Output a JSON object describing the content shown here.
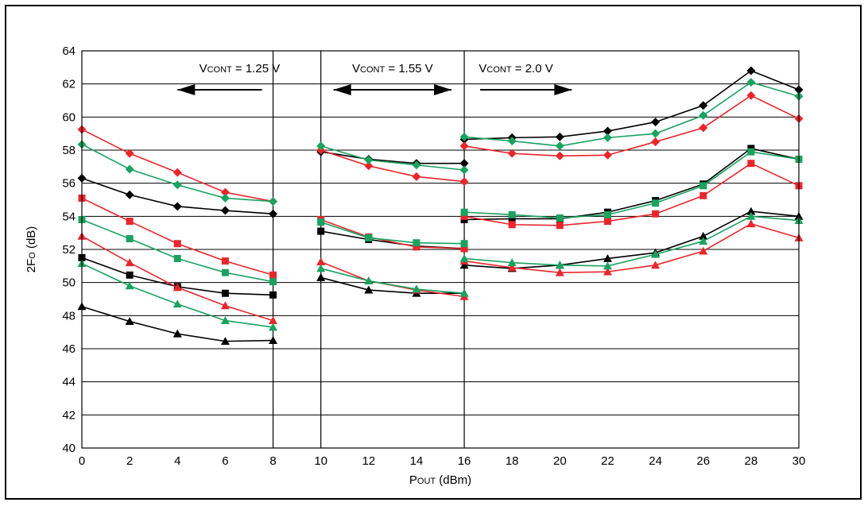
{
  "chart_data": {
    "type": "line",
    "title": "",
    "xlabel": {
      "main": "P",
      "sub": "OUT",
      "rest": " (dBm)"
    },
    "ylabel": {
      "main": "2F",
      "sub": "O",
      "rest": " (dB)"
    },
    "xlim": [
      0,
      30
    ],
    "ylim": [
      40,
      64
    ],
    "xticks": [
      0,
      2,
      4,
      6,
      8,
      10,
      12,
      14,
      16,
      18,
      20,
      22,
      24,
      26,
      28,
      30
    ],
    "yticks": [
      40,
      42,
      44,
      46,
      48,
      50,
      52,
      54,
      56,
      58,
      60,
      62,
      64
    ],
    "grid": true,
    "colors": {
      "black": "#000000",
      "red": "#e8262c",
      "green": "#1aa260"
    },
    "dividers_x": [
      8,
      10,
      16
    ],
    "annotations": [
      {
        "v": "V",
        "sub": "CONT",
        "rest": " = 1.25 V",
        "arrow": "left",
        "x_from": 8,
        "x_to": 4,
        "y": 63
      },
      {
        "v": "V",
        "sub": "CONT",
        "rest": " = 1.55 V",
        "arrow": "both",
        "x_from": 10,
        "x_to": 16,
        "y": 63
      },
      {
        "v": "V",
        "sub": "CONT",
        "rest": " = 2.0 V",
        "arrow": "right",
        "x_from": 16,
        "x_to": 20.5,
        "y": 63
      }
    ],
    "series": [
      {
        "color": "black",
        "marker": "diamond",
        "x": [
          0,
          2,
          4,
          6,
          8
        ],
        "y": [
          56.3,
          55.3,
          54.6,
          54.35,
          54.15
        ]
      },
      {
        "color": "red",
        "marker": "diamond",
        "x": [
          0,
          2,
          4,
          6,
          8
        ],
        "y": [
          59.25,
          57.8,
          56.65,
          55.45,
          54.9
        ]
      },
      {
        "color": "green",
        "marker": "diamond",
        "x": [
          0,
          2,
          4,
          6,
          8
        ],
        "y": [
          58.35,
          56.85,
          55.9,
          55.1,
          54.9
        ]
      },
      {
        "color": "black",
        "marker": "square",
        "x": [
          0,
          2,
          4,
          6,
          8
        ],
        "y": [
          51.5,
          50.45,
          49.75,
          49.35,
          49.25
        ]
      },
      {
        "color": "red",
        "marker": "square",
        "x": [
          0,
          2,
          4,
          6,
          8
        ],
        "y": [
          55.1,
          53.7,
          52.35,
          51.3,
          50.45
        ]
      },
      {
        "color": "green",
        "marker": "square",
        "x": [
          0,
          2,
          4,
          6,
          8
        ],
        "y": [
          53.8,
          52.65,
          51.45,
          50.6,
          50.05
        ]
      },
      {
        "color": "black",
        "marker": "triangle",
        "x": [
          0,
          2,
          4,
          6,
          8
        ],
        "y": [
          48.55,
          47.65,
          46.9,
          46.45,
          46.5
        ]
      },
      {
        "color": "red",
        "marker": "triangle",
        "x": [
          0,
          2,
          4,
          6,
          8
        ],
        "y": [
          52.8,
          51.2,
          49.7,
          48.6,
          47.7
        ]
      },
      {
        "color": "green",
        "marker": "triangle",
        "x": [
          0,
          2,
          4,
          6,
          8
        ],
        "y": [
          51.15,
          49.8,
          48.7,
          47.7,
          47.3
        ]
      },
      {
        "color": "black",
        "marker": "diamond",
        "x": [
          10,
          12,
          14,
          16
        ],
        "y": [
          57.9,
          57.45,
          57.2,
          57.2
        ]
      },
      {
        "color": "red",
        "marker": "diamond",
        "x": [
          10,
          12,
          14,
          16
        ],
        "y": [
          58.0,
          57.05,
          56.4,
          56.1
        ]
      },
      {
        "color": "green",
        "marker": "diamond",
        "x": [
          10,
          12,
          14,
          16
        ],
        "y": [
          58.25,
          57.4,
          57.1,
          56.8
        ]
      },
      {
        "color": "black",
        "marker": "square",
        "x": [
          10,
          12,
          14,
          16
        ],
        "y": [
          53.1,
          52.6,
          52.2,
          52.05
        ]
      },
      {
        "color": "red",
        "marker": "square",
        "x": [
          10,
          12,
          14,
          16
        ],
        "y": [
          53.8,
          52.75,
          52.15,
          52.05
        ]
      },
      {
        "color": "green",
        "marker": "square",
        "x": [
          10,
          12,
          14,
          16
        ],
        "y": [
          53.65,
          52.7,
          52.4,
          52.35
        ]
      },
      {
        "color": "black",
        "marker": "triangle",
        "x": [
          10,
          12,
          14,
          16
        ],
        "y": [
          50.3,
          49.55,
          49.35,
          49.35
        ]
      },
      {
        "color": "red",
        "marker": "triangle",
        "x": [
          10,
          12,
          14,
          16
        ],
        "y": [
          51.25,
          50.1,
          49.55,
          49.15
        ]
      },
      {
        "color": "green",
        "marker": "triangle",
        "x": [
          10,
          12,
          14,
          16
        ],
        "y": [
          50.85,
          50.1,
          49.6,
          49.35
        ]
      },
      {
        "color": "black",
        "marker": "diamond",
        "x": [
          16,
          18,
          20,
          22,
          24,
          26,
          28,
          30
        ],
        "y": [
          58.65,
          58.75,
          58.8,
          59.15,
          59.7,
          60.7,
          62.8,
          61.65
        ]
      },
      {
        "color": "red",
        "marker": "diamond",
        "x": [
          16,
          18,
          20,
          22,
          24,
          26,
          28,
          30
        ],
        "y": [
          58.25,
          57.8,
          57.65,
          57.7,
          58.5,
          59.35,
          61.3,
          59.9
        ]
      },
      {
        "color": "green",
        "marker": "diamond",
        "x": [
          16,
          18,
          20,
          22,
          24,
          26,
          28,
          30
        ],
        "y": [
          58.8,
          58.55,
          58.25,
          58.75,
          59.0,
          60.1,
          62.1,
          61.25
        ]
      },
      {
        "color": "black",
        "marker": "square",
        "x": [
          16,
          18,
          20,
          22,
          24,
          26,
          28,
          30
        ],
        "y": [
          53.8,
          53.85,
          53.85,
          54.25,
          54.95,
          55.95,
          58.1,
          57.45
        ]
      },
      {
        "color": "red",
        "marker": "square",
        "x": [
          16,
          18,
          20,
          22,
          24,
          26,
          28,
          30
        ],
        "y": [
          54.0,
          53.5,
          53.45,
          53.7,
          54.15,
          55.25,
          57.2,
          55.85
        ]
      },
      {
        "color": "green",
        "marker": "square",
        "x": [
          16,
          18,
          20,
          22,
          24,
          26,
          28,
          30
        ],
        "y": [
          54.25,
          54.1,
          53.9,
          54.1,
          54.8,
          55.85,
          57.9,
          57.45
        ]
      },
      {
        "color": "black",
        "marker": "triangle",
        "x": [
          16,
          18,
          20,
          22,
          24,
          26,
          28,
          30
        ],
        "y": [
          51.05,
          50.85,
          51.05,
          51.45,
          51.8,
          52.8,
          54.3,
          54.0
        ]
      },
      {
        "color": "red",
        "marker": "triangle",
        "x": [
          16,
          18,
          20,
          22,
          24,
          26,
          28,
          30
        ],
        "y": [
          51.3,
          50.9,
          50.6,
          50.65,
          51.05,
          51.9,
          53.55,
          52.7
        ]
      },
      {
        "color": "green",
        "marker": "triangle",
        "x": [
          16,
          18,
          20,
          22,
          24,
          26,
          28,
          30
        ],
        "y": [
          51.45,
          51.2,
          51.05,
          51.0,
          51.7,
          52.5,
          54.0,
          53.75
        ]
      }
    ]
  }
}
